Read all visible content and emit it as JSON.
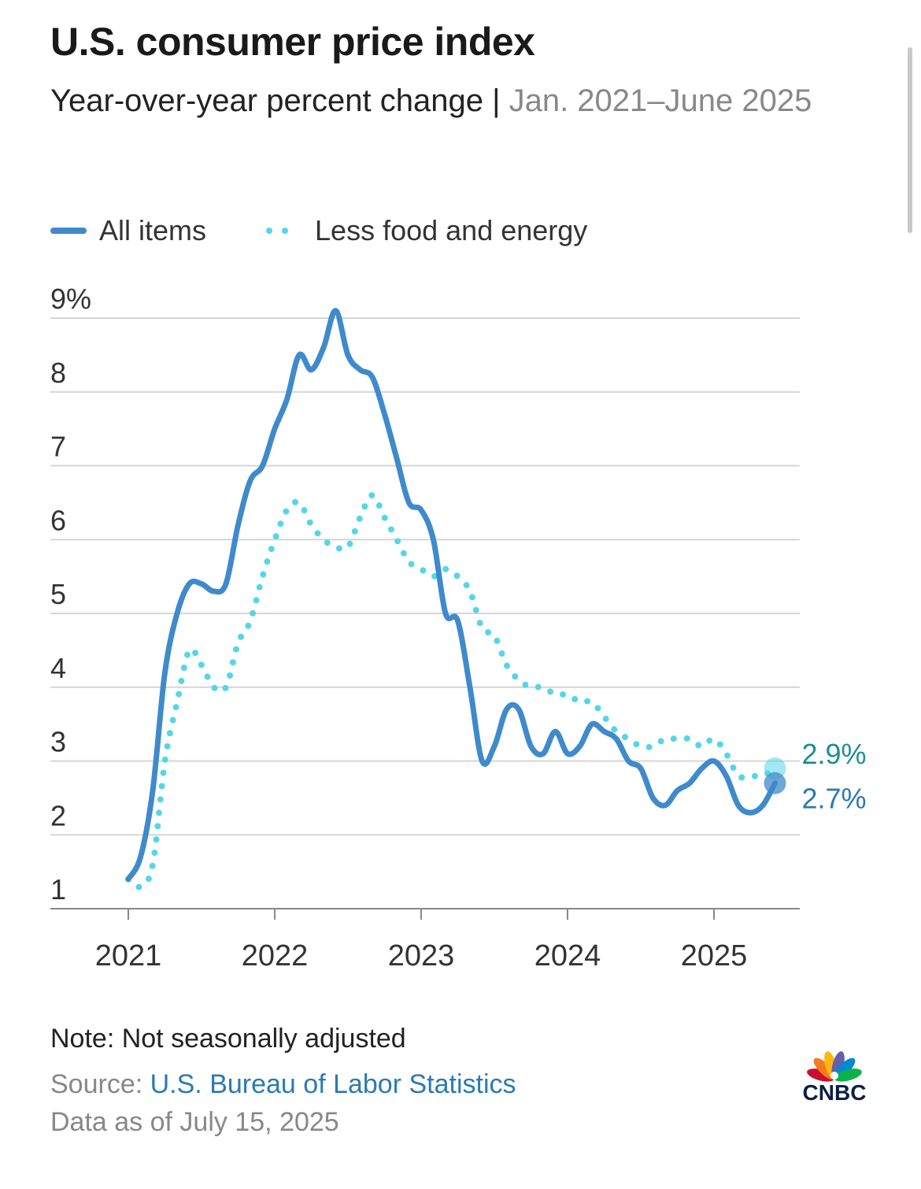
{
  "header": {
    "title": "U.S. consumer price index",
    "subtitle_main": "Year-over-year percent change | ",
    "subtitle_range": "Jan. 2021–June 2025"
  },
  "legend": {
    "all_items": "All items",
    "core": "Less food and energy"
  },
  "colors": {
    "all_items": "#3f8acb",
    "core": "#55d6e8",
    "all_items_label": "#2a7ab5",
    "core_label": "#1a8f98",
    "grid": "#d6d6d6",
    "axis": "#888888"
  },
  "chart_data": {
    "type": "line",
    "y_tick_labels": [
      "9%",
      "8",
      "7",
      "6",
      "5",
      "4",
      "3",
      "2",
      "1"
    ],
    "x_tick_labels": [
      "2021",
      "2022",
      "2023",
      "2024",
      "2025"
    ],
    "ylim": [
      1,
      9
    ],
    "x_start": "2021-01",
    "series": [
      {
        "name": "All items",
        "style": "solid",
        "values": [
          1.4,
          1.7,
          2.6,
          4.2,
          5.0,
          5.4,
          5.4,
          5.3,
          5.4,
          6.2,
          6.8,
          7.0,
          7.5,
          7.9,
          8.5,
          8.3,
          8.6,
          9.1,
          8.5,
          8.3,
          8.2,
          7.7,
          7.1,
          6.5,
          6.4,
          6.0,
          5.0,
          4.9,
          4.0,
          3.0,
          3.2,
          3.7,
          3.7,
          3.2,
          3.1,
          3.4,
          3.1,
          3.2,
          3.5,
          3.4,
          3.3,
          3.0,
          2.9,
          2.5,
          2.4,
          2.6,
          2.7,
          2.9,
          3.0,
          2.8,
          2.4,
          2.3,
          2.4,
          2.7
        ],
        "end_label": "2.7%"
      },
      {
        "name": "Less food and energy",
        "style": "dotted",
        "values": [
          1.4,
          1.3,
          1.6,
          3.0,
          3.8,
          4.5,
          4.3,
          4.0,
          4.0,
          4.6,
          4.9,
          5.5,
          6.0,
          6.4,
          6.5,
          6.2,
          6.0,
          5.9,
          5.9,
          6.3,
          6.6,
          6.3,
          6.0,
          5.7,
          5.6,
          5.5,
          5.6,
          5.5,
          5.3,
          4.8,
          4.7,
          4.3,
          4.1,
          4.0,
          4.0,
          3.9,
          3.9,
          3.8,
          3.8,
          3.6,
          3.4,
          3.3,
          3.2,
          3.2,
          3.3,
          3.3,
          3.3,
          3.2,
          3.3,
          3.1,
          2.8,
          2.8,
          2.8,
          2.9
        ],
        "end_label": "2.9%"
      }
    ]
  },
  "footer": {
    "note": "Note: Not seasonally adjusted",
    "source_prefix": "Source: ",
    "source_link": "U.S. Bureau of Labor Statistics",
    "as_of": "Data as of July 15, 2025"
  },
  "logo": {
    "text": "CNBC"
  }
}
